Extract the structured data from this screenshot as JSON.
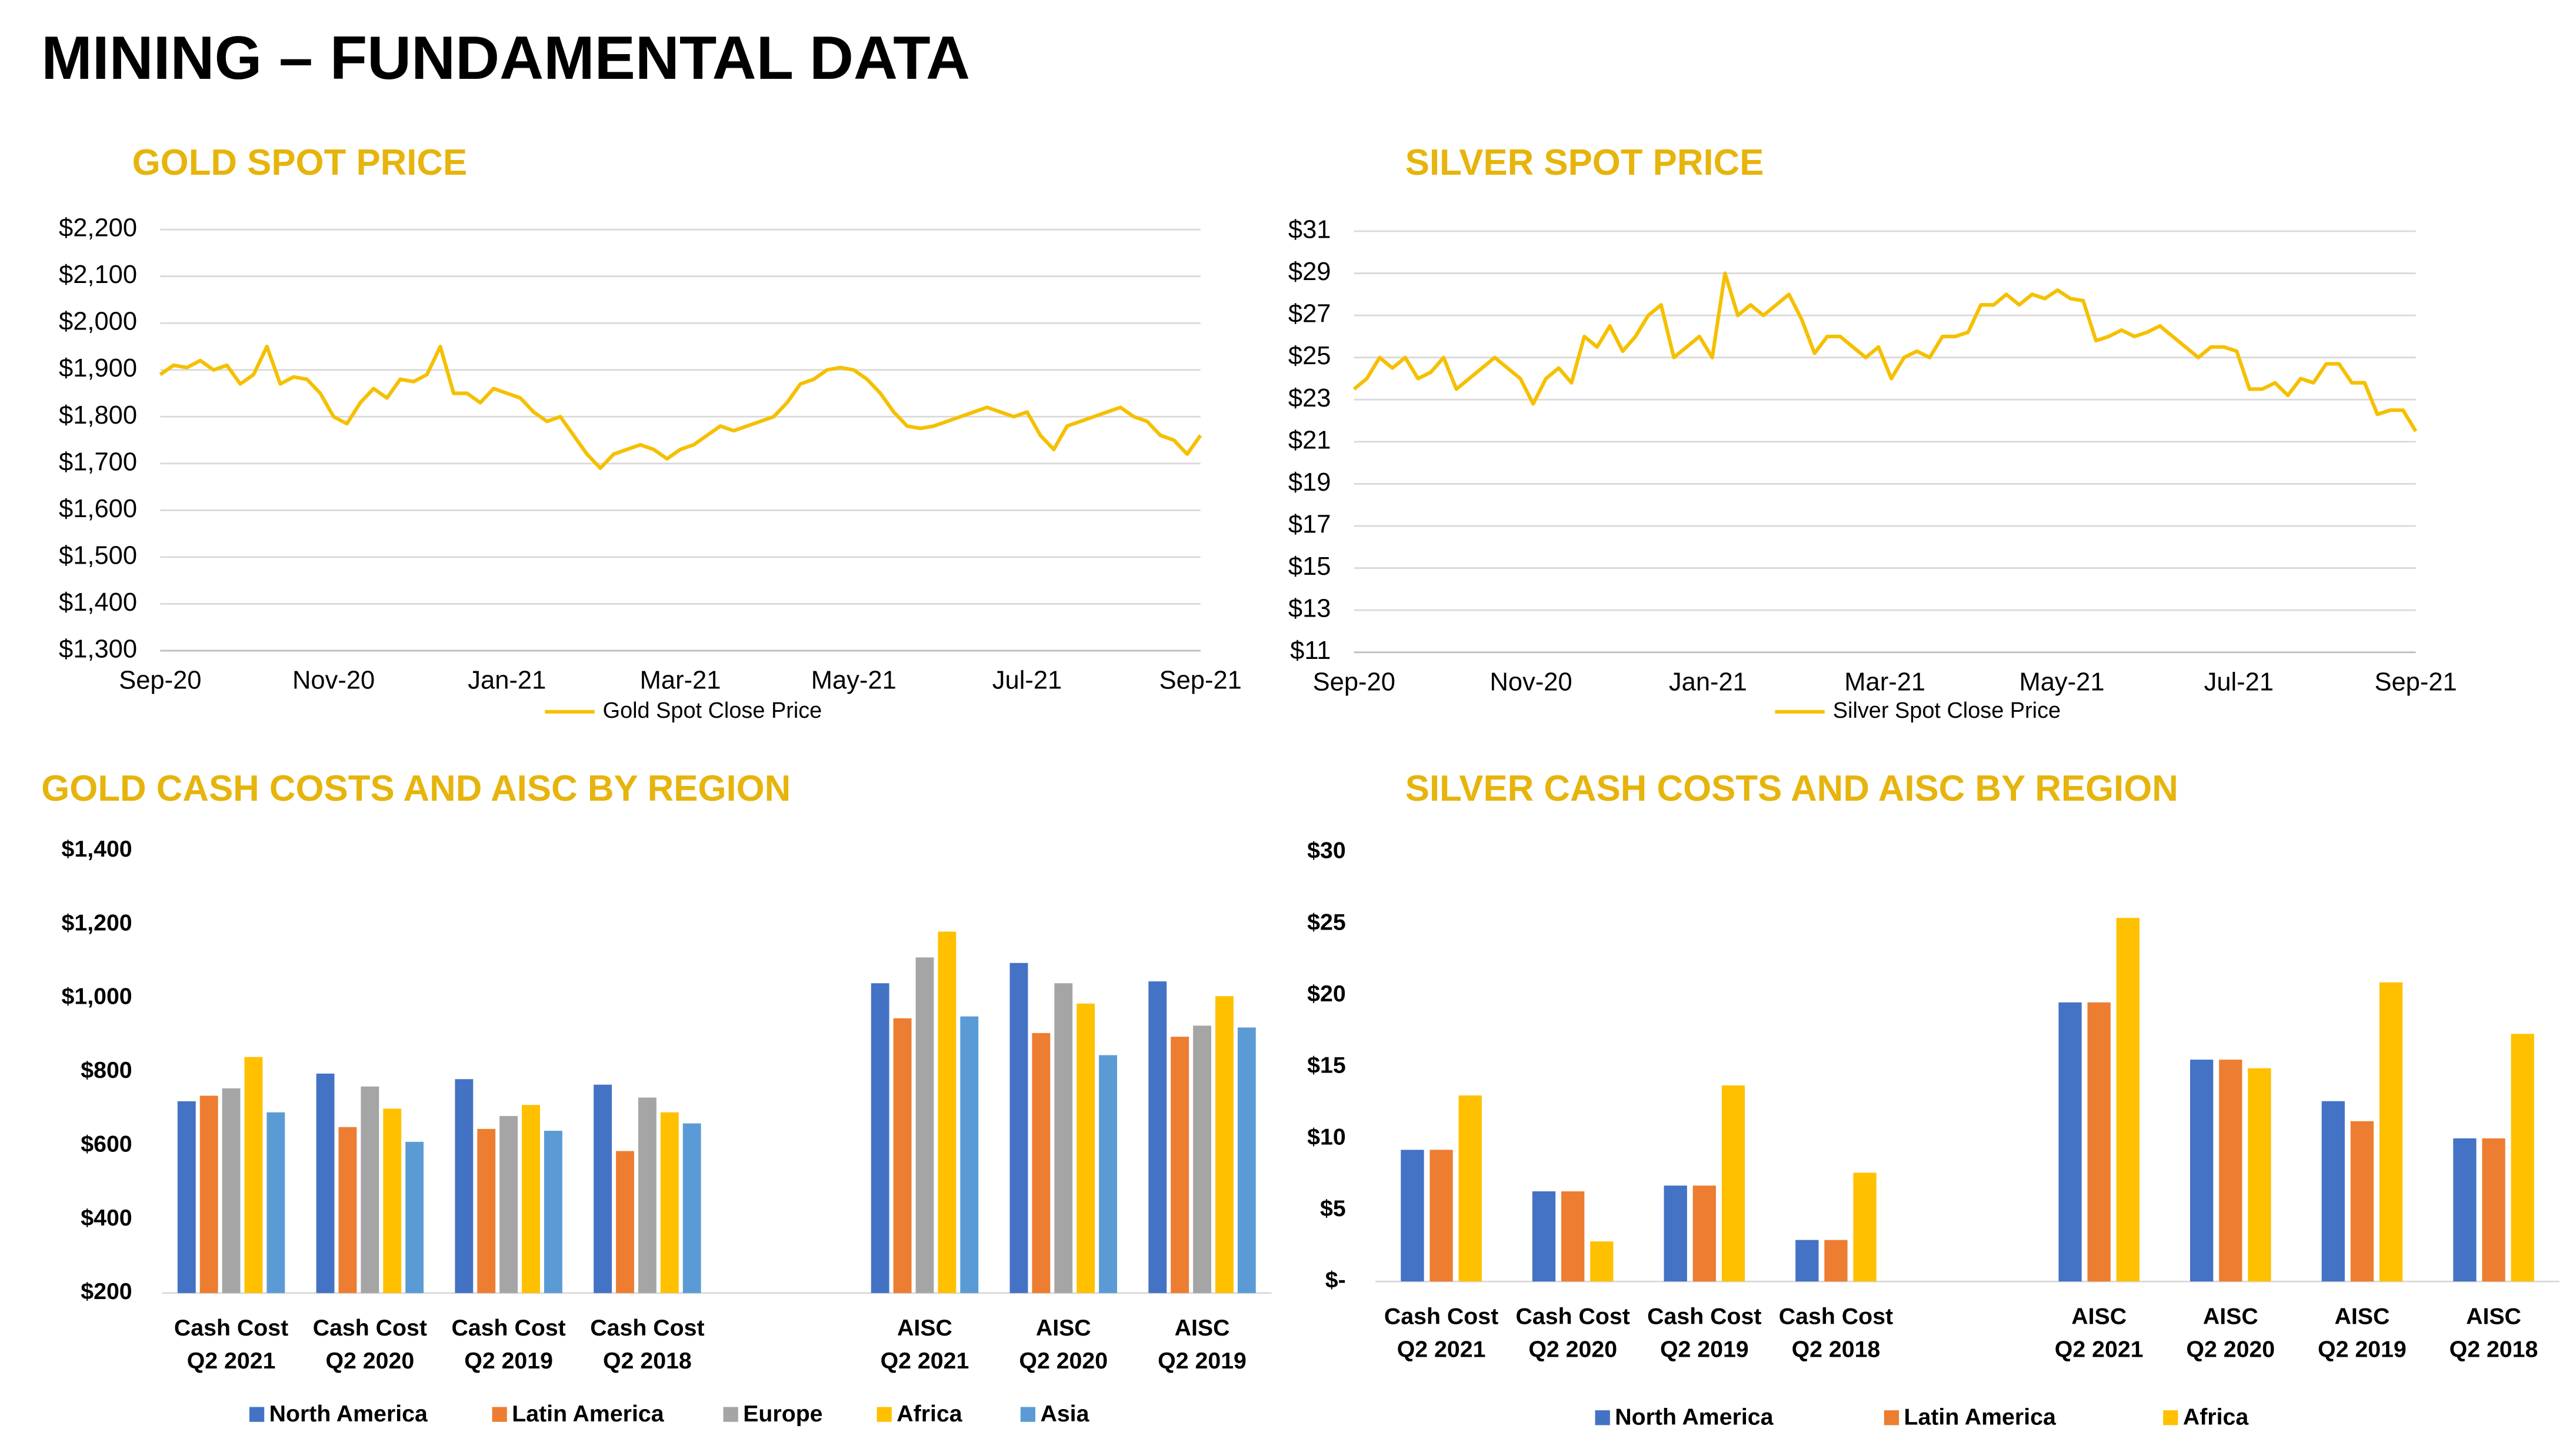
{
  "title": "MINING – FUNDAMENTAL DATA",
  "chart_data": [
    {
      "type": "line",
      "title": "GOLD SPOT PRICE",
      "xticks": [
        "Sep-20",
        "Nov-20",
        "Jan-21",
        "Mar-21",
        "May-21",
        "Jul-21",
        "Sep-21"
      ],
      "series": [
        {
          "name": "Gold Spot Close Price",
          "color": "#f5c000",
          "values": [
            1890,
            1910,
            1905,
            1920,
            1900,
            1910,
            1870,
            1890,
            1950,
            1870,
            1885,
            1880,
            1850,
            1800,
            1785,
            1830,
            1860,
            1840,
            1880,
            1875,
            1890,
            1950,
            1850,
            1850,
            1830,
            1860,
            1850,
            1840,
            1810,
            1790,
            1800,
            1760,
            1720,
            1690,
            1720,
            1730,
            1740,
            1730,
            1710,
            1730,
            1740,
            1760,
            1780,
            1770,
            1780,
            1790,
            1800,
            1830,
            1870,
            1880,
            1900,
            1905,
            1900,
            1880,
            1850,
            1810,
            1780,
            1775,
            1780,
            1790,
            1800,
            1810,
            1820,
            1810,
            1800,
            1810,
            1760,
            1730,
            1780,
            1790,
            1800,
            1810,
            1820,
            1800,
            1790,
            1760,
            1750,
            1720,
            1760
          ]
        }
      ],
      "ylim": [
        1300,
        2200
      ],
      "yticks": [
        {
          "value": 1300,
          "label": "$1,300"
        },
        {
          "value": 1400,
          "label": "$1,400"
        },
        {
          "value": 1500,
          "label": "$1,500"
        },
        {
          "value": 1600,
          "label": "$1,600"
        },
        {
          "value": 1700,
          "label": "$1,700"
        },
        {
          "value": 1800,
          "label": "$1,800"
        },
        {
          "value": 1900,
          "label": "$1,900"
        },
        {
          "value": 2000,
          "label": "$2,000"
        },
        {
          "value": 2100,
          "label": "$2,100"
        },
        {
          "value": 2200,
          "label": "$2,200"
        }
      ],
      "grid": true,
      "legend": "bottom"
    },
    {
      "type": "line",
      "title": "SILVER SPOT PRICE",
      "xticks": [
        "Sep-20",
        "Nov-20",
        "Jan-21",
        "Mar-21",
        "May-21",
        "Jul-21",
        "Sep-21"
      ],
      "series": [
        {
          "name": "Silver Spot Close Price",
          "color": "#f5c000",
          "values": [
            23.5,
            24,
            25,
            24.5,
            25,
            24,
            24.3,
            25,
            23.5,
            24,
            24.5,
            25,
            24.5,
            24,
            22.8,
            24,
            24.5,
            23.8,
            26,
            25.5,
            26.5,
            25.3,
            26,
            27,
            27.5,
            25,
            25.5,
            26,
            25,
            29,
            27,
            27.5,
            27,
            27.5,
            28,
            26.8,
            25.2,
            26,
            26,
            25.5,
            25,
            25.5,
            24,
            25,
            25.3,
            25,
            26,
            26,
            26.2,
            27.5,
            27.5,
            28,
            27.5,
            28,
            27.8,
            28.2,
            27.8,
            27.7,
            25.8,
            26,
            26.3,
            26,
            26.2,
            26.5,
            26,
            25.5,
            25,
            25.5,
            25.5,
            25.3,
            23.5,
            23.5,
            23.8,
            23.2,
            24,
            23.8,
            24.7,
            24.7,
            23.8,
            23.8,
            22.3,
            22.5,
            22.5,
            21.5
          ]
        }
      ],
      "ylim": [
        11,
        31
      ],
      "yticks": [
        {
          "value": 11,
          "label": "$11"
        },
        {
          "value": 13,
          "label": "$13"
        },
        {
          "value": 15,
          "label": "$15"
        },
        {
          "value": 17,
          "label": "$17"
        },
        {
          "value": 19,
          "label": "$19"
        },
        {
          "value": 21,
          "label": "$21"
        },
        {
          "value": 23,
          "label": "$23"
        },
        {
          "value": 25,
          "label": "$25"
        },
        {
          "value": 27,
          "label": "$27"
        },
        {
          "value": 29,
          "label": "$29"
        },
        {
          "value": 31,
          "label": "$31"
        }
      ],
      "grid": true,
      "legend": "bottom"
    },
    {
      "type": "bar",
      "title": "GOLD CASH COSTS AND AISC BY REGION",
      "categories": [
        [
          "Cash Cost",
          "Q2 2021"
        ],
        [
          "Cash Cost",
          "Q2 2020"
        ],
        [
          "Cash Cost",
          "Q2 2019"
        ],
        [
          "Cash Cost",
          "Q2 2018"
        ],
        null,
        [
          "AISC",
          "Q2 2021"
        ],
        [
          "AISC",
          "Q2 2020"
        ],
        [
          "AISC",
          "Q2 2019"
        ]
      ],
      "series": [
        {
          "name": "North America",
          "color": "#4472c4",
          "values": [
            720,
            795,
            780,
            765,
            null,
            1040,
            1095,
            1045
          ]
        },
        {
          "name": "Latin America",
          "color": "#ed7d31",
          "values": [
            735,
            650,
            645,
            585,
            null,
            945,
            905,
            895
          ]
        },
        {
          "name": "Europe",
          "color": "#a5a5a5",
          "values": [
            755,
            760,
            680,
            730,
            null,
            1110,
            1040,
            925
          ]
        },
        {
          "name": "Africa",
          "color": "#ffc000",
          "values": [
            840,
            700,
            710,
            690,
            null,
            1180,
            985,
            1005
          ]
        },
        {
          "name": "Asia",
          "color": "#5b9bd5",
          "values": [
            690,
            610,
            640,
            660,
            null,
            950,
            845,
            920
          ]
        }
      ],
      "ylim": [
        200,
        1400
      ],
      "yticks": [
        {
          "value": 200,
          "label": "$200"
        },
        {
          "value": 400,
          "label": "$400"
        },
        {
          "value": 600,
          "label": "$600"
        },
        {
          "value": 800,
          "label": "$800"
        },
        {
          "value": 1000,
          "label": "$1,000"
        },
        {
          "value": 1200,
          "label": "$1,200"
        },
        {
          "value": 1400,
          "label": "$1,400"
        }
      ],
      "grid": false,
      "legend": "bottom"
    },
    {
      "type": "bar",
      "title": "SILVER CASH COSTS AND AISC BY REGION",
      "categories": [
        [
          "Cash Cost",
          "Q2 2021"
        ],
        [
          "Cash Cost",
          "Q2 2020"
        ],
        [
          "Cash Cost",
          "Q2 2019"
        ],
        [
          "Cash Cost",
          "Q2 2018"
        ],
        null,
        [
          "AISC",
          "Q2 2021"
        ],
        [
          "AISC",
          "Q2 2020"
        ],
        [
          "AISC",
          "Q2 2019"
        ],
        [
          "AISC",
          "Q2 2018"
        ]
      ],
      "series": [
        {
          "name": "North America",
          "color": "#4472c4",
          "values": [
            9.2,
            6.3,
            6.7,
            2.9,
            null,
            19.5,
            15.5,
            12.6,
            10
          ]
        },
        {
          "name": "Latin America",
          "color": "#ed7d31",
          "values": [
            9.2,
            6.3,
            6.7,
            2.9,
            null,
            19.5,
            15.5,
            11.2,
            10
          ]
        },
        {
          "name": "Africa",
          "color": "#ffc000",
          "values": [
            13,
            2.8,
            13.7,
            7.6,
            null,
            25.4,
            14.9,
            20.9,
            17.3
          ]
        }
      ],
      "ylim": [
        0,
        30
      ],
      "yticks": [
        {
          "value": 0,
          "label": "$-"
        },
        {
          "value": 5,
          "label": "$5"
        },
        {
          "value": 10,
          "label": "$10"
        },
        {
          "value": 15,
          "label": "$15"
        },
        {
          "value": 20,
          "label": "$20"
        },
        {
          "value": 25,
          "label": "$25"
        },
        {
          "value": 30,
          "label": "$30"
        }
      ],
      "grid": false,
      "legend": "bottom"
    }
  ]
}
